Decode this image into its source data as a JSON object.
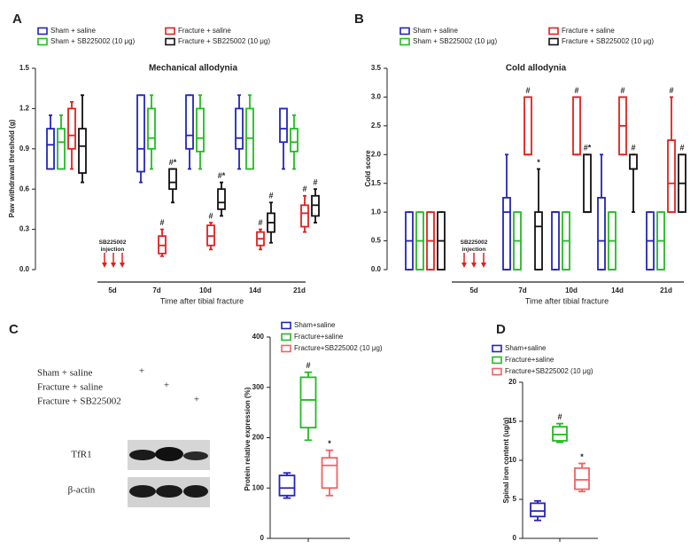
{
  "chart_data": [
    {
      "type": "box",
      "panel_label": "A",
      "title": "Mechanical allodynia",
      "ylabel": "Paw withdrawal threshold (g)",
      "xlabel": "Time after tibial fracture",
      "annotation": "SB225002 injection",
      "categories": [
        null,
        "5d",
        "7d",
        "10d",
        "14d",
        "21d"
      ],
      "ylim": [
        0,
        1.5
      ],
      "yticks": [
        {
          "value": 0,
          "label": "0.0"
        },
        {
          "value": 0.3,
          "label": "0.3"
        },
        {
          "value": 0.6,
          "label": "0.6"
        },
        {
          "value": 0.9,
          "label": "0.9"
        },
        {
          "value": 1.2,
          "label": "1.2"
        },
        {
          "value": 1.5,
          "label": "1.5"
        }
      ],
      "series": [
        {
          "name": "Sham + saline",
          "color": "#2424b8",
          "values": [
            {
              "min": 0.75,
              "q1": 0.75,
              "median": 0.93,
              "q3": 1.05,
              "max": 1.15
            },
            null,
            {
              "min": 0.65,
              "q1": 0.73,
              "median": 0.9,
              "q3": 1.3,
              "max": 1.3
            },
            {
              "min": 0.75,
              "q1": 0.9,
              "median": 1.0,
              "q3": 1.3,
              "max": 1.3
            },
            {
              "min": 0.75,
              "q1": 0.9,
              "median": 0.98,
              "q3": 1.2,
              "max": 1.3
            },
            {
              "min": 0.75,
              "q1": 0.95,
              "median": 1.05,
              "q3": 1.2,
              "max": 1.2
            }
          ]
        },
        {
          "name": "Sham + SB225002 (10 μg)",
          "color": "#22bb22",
          "values": [
            {
              "min": 0.75,
              "q1": 0.75,
              "median": 0.95,
              "q3": 1.05,
              "max": 1.15
            },
            null,
            {
              "min": 0.75,
              "q1": 0.9,
              "median": 0.98,
              "q3": 1.2,
              "max": 1.3
            },
            {
              "min": 0.75,
              "q1": 0.88,
              "median": 0.98,
              "q3": 1.2,
              "max": 1.3
            },
            {
              "min": 0.75,
              "q1": 0.75,
              "median": 0.98,
              "q3": 1.2,
              "max": 1.3
            },
            {
              "min": 0.75,
              "q1": 0.88,
              "median": 0.95,
              "q3": 1.05,
              "max": 1.15
            }
          ]
        },
        {
          "name": "Fracture + saline",
          "color": "#e02020",
          "values": [
            {
              "min": 0.75,
              "q1": 0.9,
              "median": 1.0,
              "q3": 1.2,
              "max": 1.25
            },
            null,
            {
              "min": 0.1,
              "q1": 0.12,
              "median": 0.18,
              "q3": 0.25,
              "max": 0.3
            },
            {
              "min": 0.15,
              "q1": 0.18,
              "median": 0.25,
              "q3": 0.33,
              "max": 0.35
            },
            {
              "min": 0.15,
              "q1": 0.18,
              "median": 0.23,
              "q3": 0.28,
              "max": 0.3
            },
            {
              "min": 0.28,
              "q1": 0.32,
              "median": 0.42,
              "q3": 0.48,
              "max": 0.55
            }
          ],
          "annotations": [
            null,
            null,
            "#",
            "#",
            "#",
            "#"
          ]
        },
        {
          "name": "Fracture + SB225002 (10 μg)",
          "color": "#111111",
          "values": [
            {
              "min": 0.65,
              "q1": 0.72,
              "median": 0.92,
              "q3": 1.05,
              "max": 1.3
            },
            null,
            {
              "min": 0.5,
              "q1": 0.6,
              "median": 0.65,
              "q3": 0.75,
              "max": 0.75
            },
            {
              "min": 0.4,
              "q1": 0.45,
              "median": 0.5,
              "q3": 0.6,
              "max": 0.65
            },
            {
              "min": 0.2,
              "q1": 0.28,
              "median": 0.35,
              "q3": 0.42,
              "max": 0.5
            },
            {
              "min": 0.35,
              "q1": 0.4,
              "median": 0.48,
              "q3": 0.55,
              "max": 0.6
            }
          ],
          "annotations": [
            null,
            null,
            "#*",
            "#*",
            "#",
            "#"
          ]
        }
      ]
    },
    {
      "type": "box",
      "panel_label": "B",
      "title": "Cold allodynia",
      "ylabel": "Cold score",
      "xlabel": "Time after tibial fracture",
      "annotation": "SB225002 injection",
      "categories": [
        null,
        "5d",
        "7d",
        "10d",
        "14d",
        "21d"
      ],
      "ylim": [
        0,
        3.5
      ],
      "yticks": [
        {
          "value": 0,
          "label": "0.0"
        },
        {
          "value": 0.5,
          "label": "0.5"
        },
        {
          "value": 1,
          "label": "1.0"
        },
        {
          "value": 1.5,
          "label": "1.5"
        },
        {
          "value": 2,
          "label": "2.0"
        },
        {
          "value": 2.5,
          "label": "2.5"
        },
        {
          "value": 3,
          "label": "3.0"
        },
        {
          "value": 3.5,
          "label": "3.5"
        }
      ],
      "series": [
        {
          "name": "Sham + saline",
          "color": "#2424b8",
          "values": [
            {
              "min": 0,
              "q1": 0,
              "median": 0.5,
              "q3": 1,
              "max": 1
            },
            null,
            {
              "min": 0,
              "q1": 0,
              "median": 1,
              "q3": 1.25,
              "max": 2
            },
            {
              "min": 0,
              "q1": 0,
              "median": 1,
              "q3": 1,
              "max": 1
            },
            {
              "min": 0,
              "q1": 0,
              "median": 0.5,
              "q3": 1.25,
              "max": 2
            },
            {
              "min": 0,
              "q1": 0,
              "median": 0.5,
              "q3": 1,
              "max": 1
            }
          ]
        },
        {
          "name": "Sham + SB225002 (10 μg)",
          "color": "#22bb22",
          "values": [
            {
              "min": 0,
              "q1": 0,
              "median": 0.5,
              "q3": 1,
              "max": 1
            },
            null,
            {
              "min": 0,
              "q1": 0,
              "median": 0.5,
              "q3": 1,
              "max": 1
            },
            {
              "min": 0,
              "q1": 0,
              "median": 0.5,
              "q3": 1,
              "max": 1
            },
            {
              "min": 0,
              "q1": 0,
              "median": 0.5,
              "q3": 1,
              "max": 1
            },
            {
              "min": 0,
              "q1": 0,
              "median": 0.5,
              "q3": 1,
              "max": 1
            }
          ]
        },
        {
          "name": "Fracture + saline",
          "color": "#e02020",
          "values": [
            {
              "min": 0,
              "q1": 0,
              "median": 0.5,
              "q3": 1,
              "max": 1
            },
            null,
            {
              "min": 2,
              "q1": 2,
              "median": 2,
              "q3": 3,
              "max": 3
            },
            {
              "min": 2,
              "q1": 2,
              "median": 2,
              "q3": 3,
              "max": 3
            },
            {
              "min": 2,
              "q1": 2,
              "median": 2.5,
              "q3": 3,
              "max": 3
            },
            {
              "min": 1,
              "q1": 1,
              "median": 1.5,
              "q3": 2.25,
              "max": 3
            }
          ],
          "annotations": [
            null,
            null,
            "#",
            "#",
            "#",
            "#"
          ]
        },
        {
          "name": "Fracture + SB225002 (10 μg)",
          "color": "#111111",
          "values": [
            {
              "min": 0,
              "q1": 0,
              "median": 0.5,
              "q3": 1,
              "max": 1
            },
            null,
            {
              "min": 0,
              "q1": 0,
              "median": 0.75,
              "q3": 1,
              "max": 1.75
            },
            {
              "min": 1,
              "q1": 1,
              "median": 1,
              "q3": 2,
              "max": 2
            },
            {
              "min": 1,
              "q1": 1.75,
              "median": 1.75,
              "q3": 2,
              "max": 2
            },
            {
              "min": 1,
              "q1": 1,
              "median": 1.5,
              "q3": 2,
              "max": 2
            }
          ],
          "annotations": [
            null,
            null,
            "*",
            "#*",
            "#",
            "#"
          ]
        }
      ]
    },
    {
      "type": "box",
      "panel_label": "C",
      "ylabel": "Protein relative expression (%)",
      "categories": [
        null
      ],
      "ylim": [
        0,
        400
      ],
      "yticks": [
        0,
        100,
        200,
        300,
        400
      ],
      "series": [
        {
          "name": "Sham+saline",
          "color": "#2424b8",
          "values": [
            {
              "min": 80,
              "q1": 85,
              "median": 100,
              "q3": 125,
              "max": 130
            }
          ]
        },
        {
          "name": "Fracture+saline",
          "color": "#22bb22",
          "values": [
            {
              "min": 195,
              "q1": 220,
              "median": 275,
              "q3": 320,
              "max": 330
            }
          ],
          "annotations": [
            "#"
          ]
        },
        {
          "name": "Fracture+SB225002 (10 μg)",
          "color": "#f06262",
          "values": [
            {
              "min": 85,
              "q1": 100,
              "median": 145,
              "q3": 160,
              "max": 175
            }
          ],
          "annotations": [
            "*"
          ]
        }
      ]
    },
    {
      "type": "box",
      "panel_label": "D",
      "ylabel": "Spinal iron content (ug/g)",
      "categories": [
        null
      ],
      "ylim": [
        0,
        20
      ],
      "yticks": [
        0,
        5,
        10,
        15,
        20
      ],
      "series": [
        {
          "name": "Sham+saline",
          "color": "#2424b8",
          "values": [
            {
              "min": 2.3,
              "q1": 2.8,
              "median": 3.5,
              "q3": 4.5,
              "max": 4.8
            }
          ]
        },
        {
          "name": "Fracture+saline",
          "color": "#22bb22",
          "values": [
            {
              "min": 12.3,
              "q1": 12.5,
              "median": 13.3,
              "q3": 14.3,
              "max": 14.7
            }
          ],
          "annotations": [
            "#"
          ]
        },
        {
          "name": "Fracture+SB225002 (10 μg)",
          "color": "#f06262",
          "values": [
            {
              "min": 6,
              "q1": 6.3,
              "median": 7.5,
              "q3": 9,
              "max": 9.6
            }
          ],
          "annotations": [
            "*"
          ]
        }
      ]
    }
  ],
  "blot": {
    "groups": [
      {
        "label": "Sham + saline",
        "mark": "+"
      },
      {
        "label": "Fracture + saline",
        "mark": "+"
      },
      {
        "label": "Fracture + SB225002",
        "mark": "+"
      }
    ],
    "bands": [
      "TfR1",
      "β-actin"
    ]
  }
}
